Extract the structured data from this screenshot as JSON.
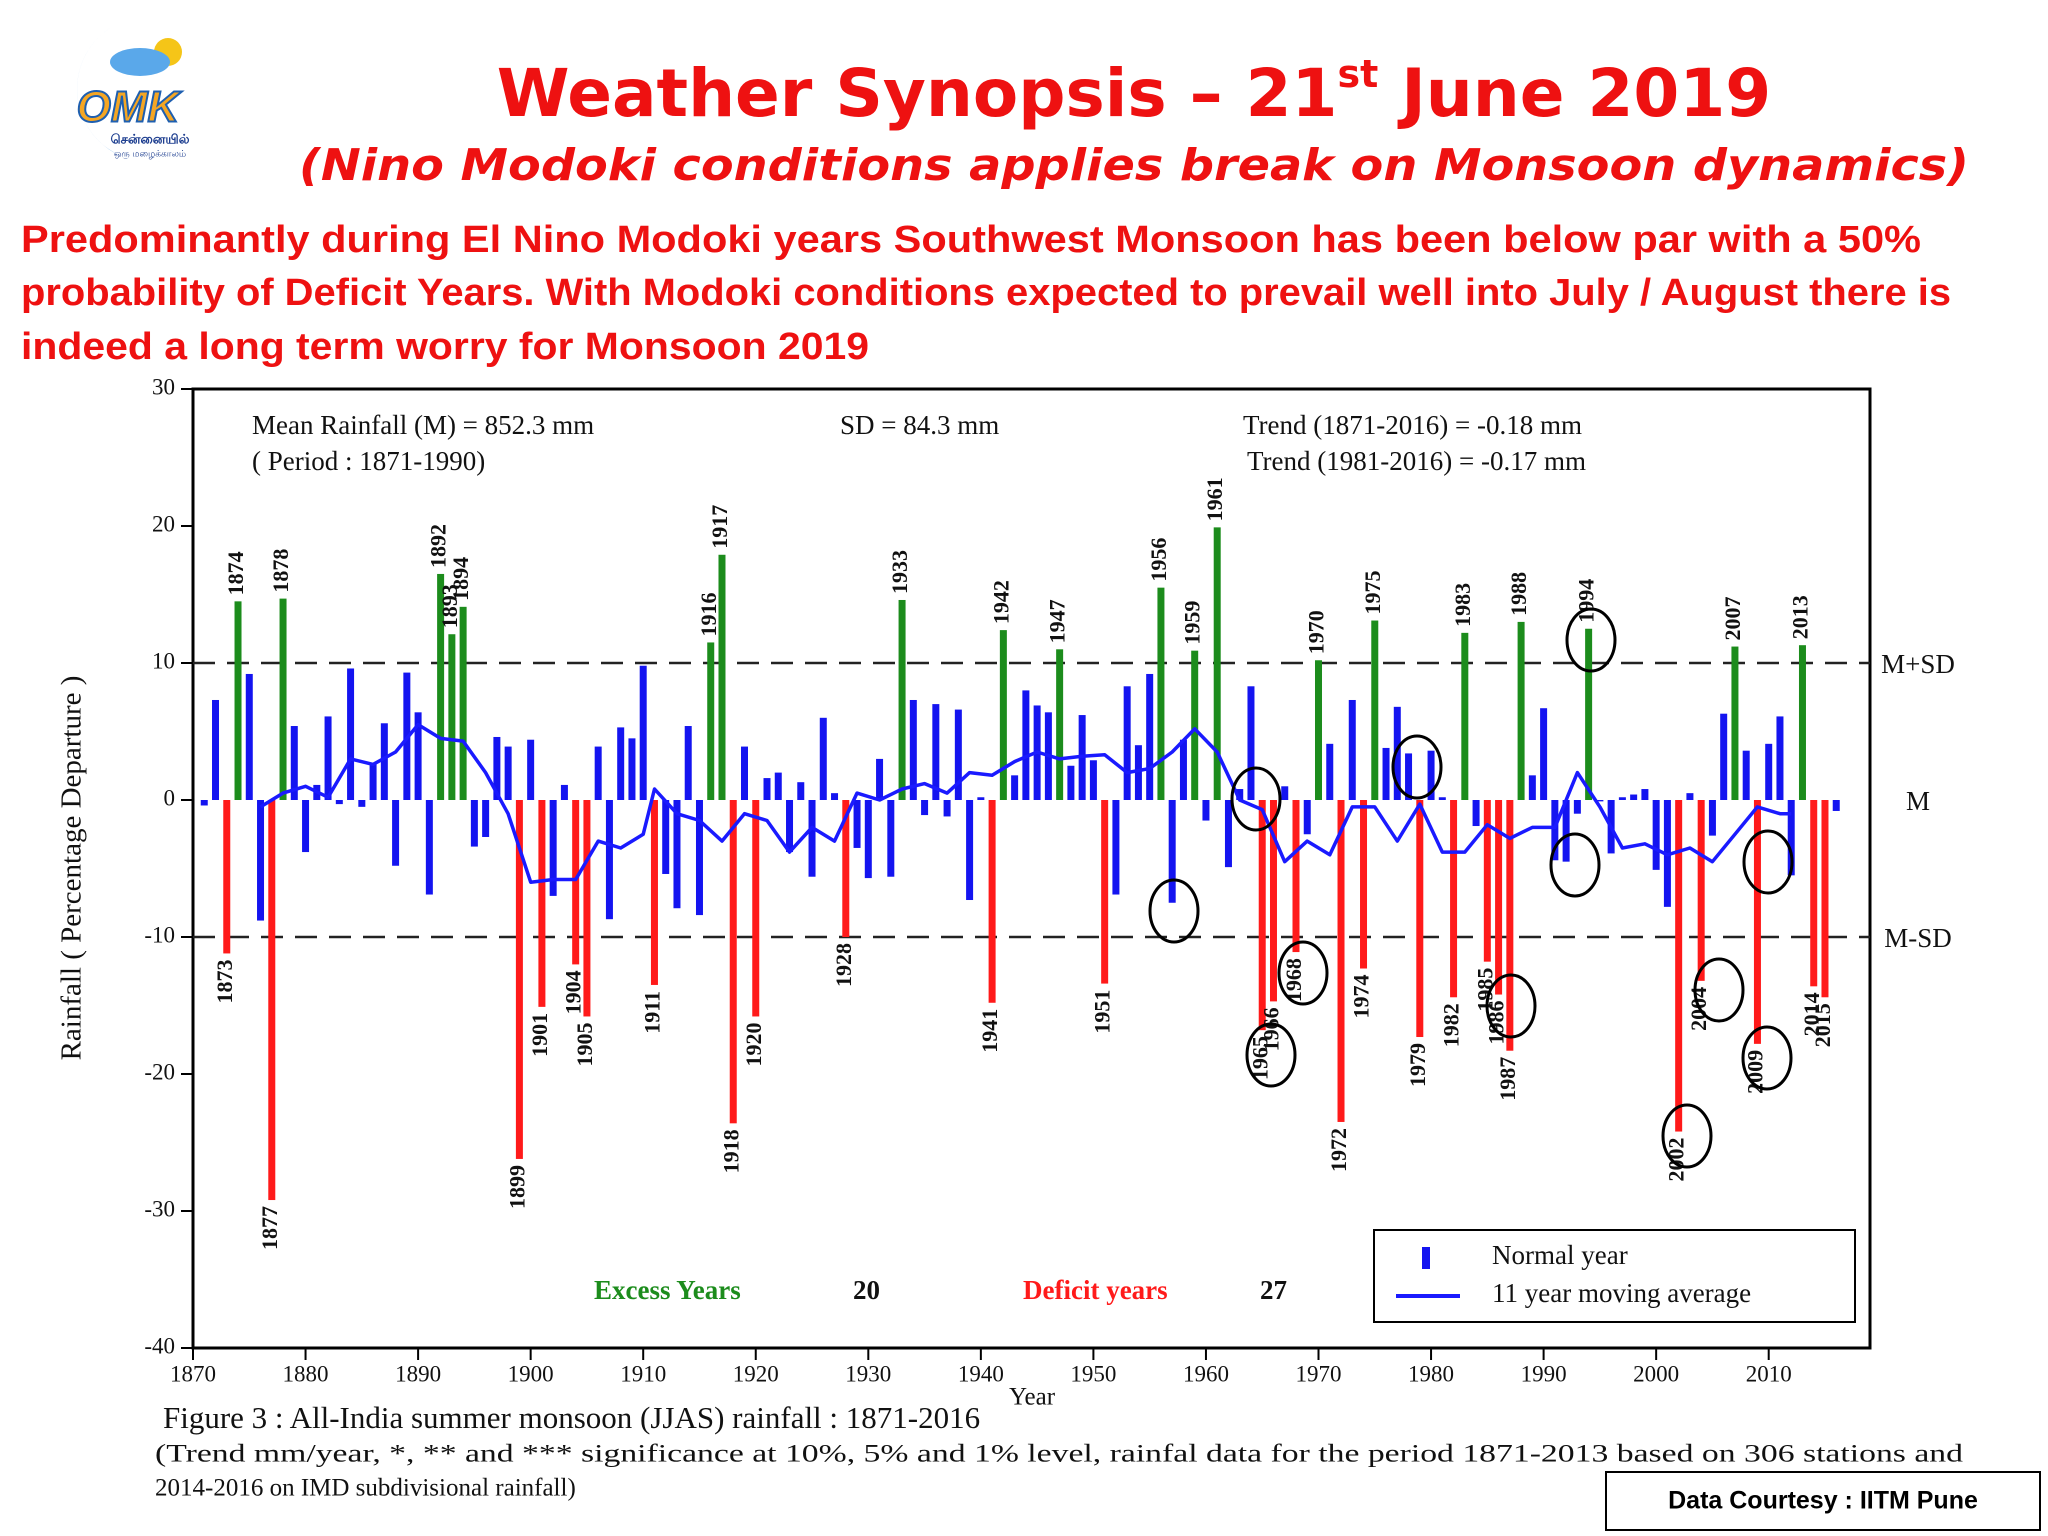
{
  "header": {
    "logo": {
      "mark": "OMK",
      "line1": "சென்னையில்",
      "line2": "ஒரு மழைக்காலம்"
    },
    "title": {
      "text": "Weather Synopsis – 21",
      "superscript": "st",
      "rest": " June 2019"
    },
    "subtitle": "(Nino Modoki conditions applies break on Monsoon dynamics)",
    "paragraph": [
      "Predominantly during El Nino Modoki years Southwest Monsoon has been below par with a 50%",
      "probability of Deficit Years. With Modoki conditions expected to prevail well into July / August there is",
      "indeed a long  term worry for Monsoon 2019"
    ]
  },
  "chart_data": {
    "type": "bar",
    "xlabel": "Year",
    "ylabel": "Rainfall ( Percentage Departure )",
    "xlim": [
      1870,
      2019
    ],
    "xticks": [
      1870,
      1880,
      1890,
      1900,
      1910,
      1920,
      1930,
      1940,
      1950,
      1960,
      1970,
      1980,
      1990,
      2000,
      2010
    ],
    "ylim": [
      -40,
      30
    ],
    "yticks": [
      -40,
      -30,
      -20,
      -10,
      0,
      10,
      20,
      30
    ],
    "reference_lines": [
      {
        "value": 10,
        "label": "M+SD"
      },
      {
        "value": 0,
        "label": "M"
      },
      {
        "value": -10,
        "label": "M-SD"
      }
    ],
    "stats": [
      "Mean Rainfall (M) = 852.3 mm",
      "( Period : 1871-1990)",
      "SD = 84.3 mm",
      "Trend (1871-2016) = -0.18 mm",
      "Trend (1981-2016) = -0.17 mm"
    ],
    "summary": [
      {
        "label": "Excess Years",
        "value": 20,
        "color": "#1c8c1c"
      },
      {
        "label": "Deficit years",
        "value": 27,
        "color": "#ff1a1a"
      }
    ],
    "legend": "bottom-right",
    "series": [
      {
        "name": "Normal year",
        "type": "bar",
        "color": "#1414f0",
        "excess_color": "#1c8c1c",
        "deficit_color": "#ff1a1a",
        "x": [
          1871,
          1872,
          1873,
          1874,
          1875,
          1876,
          1877,
          1878,
          1879,
          1880,
          1881,
          1882,
          1883,
          1884,
          1885,
          1886,
          1887,
          1888,
          1889,
          1890,
          1891,
          1892,
          1893,
          1894,
          1895,
          1896,
          1897,
          1898,
          1899,
          1900,
          1901,
          1902,
          1903,
          1904,
          1905,
          1906,
          1907,
          1908,
          1909,
          1910,
          1911,
          1912,
          1913,
          1914,
          1915,
          1916,
          1917,
          1918,
          1919,
          1920,
          1921,
          1922,
          1923,
          1924,
          1925,
          1926,
          1927,
          1928,
          1929,
          1930,
          1931,
          1932,
          1933,
          1934,
          1935,
          1936,
          1937,
          1938,
          1939,
          1940,
          1941,
          1942,
          1943,
          1944,
          1945,
          1946,
          1947,
          1948,
          1949,
          1950,
          1951,
          1952,
          1953,
          1954,
          1955,
          1956,
          1957,
          1958,
          1959,
          1960,
          1961,
          1962,
          1963,
          1964,
          1965,
          1966,
          1967,
          1968,
          1969,
          1970,
          1971,
          1972,
          1973,
          1974,
          1975,
          1976,
          1977,
          1978,
          1979,
          1980,
          1981,
          1982,
          1983,
          1984,
          1985,
          1986,
          1987,
          1988,
          1989,
          1990,
          1991,
          1992,
          1993,
          1994,
          1995,
          1996,
          1997,
          1998,
          1999,
          2000,
          2001,
          2002,
          2003,
          2004,
          2005,
          2006,
          2007,
          2008,
          2009,
          2010,
          2011,
          2012,
          2013,
          2014,
          2015,
          2016
        ],
        "values": [
          -0.4,
          7.3,
          -11.2,
          14.5,
          9.2,
          -8.8,
          -29.2,
          14.7,
          5.4,
          -3.8,
          1.1,
          6.1,
          -0.3,
          9.6,
          -0.5,
          2.6,
          5.6,
          -4.8,
          9.3,
          6.4,
          -6.9,
          16.5,
          12.1,
          14.1,
          -3.4,
          -2.7,
          4.6,
          3.9,
          -26.2,
          4.4,
          -15.1,
          -7.0,
          1.1,
          -12.0,
          -15.8,
          3.9,
          -8.7,
          5.3,
          4.5,
          9.8,
          -13.5,
          -5.4,
          -7.9,
          5.4,
          -8.4,
          11.5,
          17.9,
          -23.6,
          3.9,
          -15.8,
          1.6,
          2.0,
          -3.8,
          1.3,
          -5.6,
          6.0,
          0.5,
          -10.0,
          -3.5,
          -5.7,
          3.0,
          -5.6,
          14.6,
          7.3,
          -1.1,
          7.0,
          -1.2,
          6.6,
          -7.3,
          0.2,
          -14.8,
          12.4,
          1.8,
          8.0,
          6.9,
          6.4,
          11.0,
          2.5,
          6.2,
          2.9,
          -13.4,
          -6.9,
          8.3,
          4.0,
          9.2,
          15.5,
          -7.5,
          4.4,
          10.9,
          -1.5,
          19.9,
          -4.9,
          0.8,
          8.3,
          -16.8,
          -14.7,
          1.0,
          -11.1,
          -2.5,
          10.2,
          4.1,
          -23.5,
          7.3,
          -12.3,
          13.1,
          3.8,
          6.8,
          3.4,
          -17.3,
          3.6,
          0.2,
          -14.4,
          12.2,
          -1.9,
          -11.8,
          -14.2,
          -18.3,
          13.0,
          1.8,
          6.7,
          -4.4,
          -4.5,
          -1.0,
          12.5,
          -0.1,
          -3.9,
          0.2,
          0.4,
          0.8,
          -5.1,
          -7.8,
          -24.2,
          0.5,
          -13.2,
          -2.6,
          6.3,
          11.2,
          3.6,
          -17.8,
          4.1,
          6.1,
          -5.5,
          11.3,
          -13.6,
          -14.4,
          -0.8
        ]
      },
      {
        "name": "11 year moving average",
        "type": "line",
        "color": "#1a1aff",
        "x": [
          1876,
          1878,
          1880,
          1882,
          1884,
          1886,
          1888,
          1890,
          1892,
          1894,
          1896,
          1898,
          1900,
          1902,
          1904,
          1906,
          1908,
          1910,
          1911,
          1913,
          1915,
          1917,
          1919,
          1921,
          1923,
          1925,
          1927,
          1929,
          1931,
          1933,
          1935,
          1937,
          1939,
          1941,
          1943,
          1945,
          1947,
          1949,
          1951,
          1953,
          1955,
          1957,
          1959,
          1961,
          1963,
          1965,
          1967,
          1969,
          1971,
          1973,
          1975,
          1977,
          1979,
          1981,
          1983,
          1985,
          1987,
          1989,
          1991,
          1993,
          1995,
          1997,
          1999,
          2001,
          2003,
          2005,
          2007,
          2009,
          2011,
          2012
        ],
        "values": [
          -0.5,
          0.5,
          1.0,
          0.2,
          3.0,
          2.6,
          3.5,
          5.5,
          4.5,
          4.3,
          2.0,
          -1.0,
          -6.0,
          -5.8,
          -5.8,
          -3.0,
          -3.5,
          -2.5,
          0.8,
          -1.0,
          -1.5,
          -3.0,
          -1.0,
          -1.5,
          -3.8,
          -2.0,
          -3.0,
          0.5,
          0.0,
          0.8,
          1.2,
          0.5,
          2.0,
          1.8,
          2.8,
          3.5,
          3.0,
          3.2,
          3.3,
          2.0,
          2.3,
          3.5,
          5.2,
          3.5,
          0.0,
          -0.7,
          -4.5,
          -3.0,
          -4.0,
          -0.5,
          -0.5,
          -3.0,
          -0.3,
          -3.8,
          -3.8,
          -1.8,
          -2.8,
          -2.0,
          -2.0,
          2.0,
          -0.5,
          -3.5,
          -3.2,
          -4.0,
          -3.5,
          -4.5,
          -2.5,
          -0.5,
          -1.0,
          -1.0
        ]
      }
    ]
  },
  "footer": {
    "caption": "Figure 3 : All-India  summer monsoon (JJAS) rainfall : 1871-2016",
    "note": [
      "(Trend   mm/year,  *, ** and ***   significance at  10%, 5%  and 1% level, rainfal data for the period 1871-2013 based on 306 stations and",
      "2014-2016 on IMD subdivisional rainfall)"
    ],
    "courtesy": "Data Courtesy : IITM Pune"
  }
}
